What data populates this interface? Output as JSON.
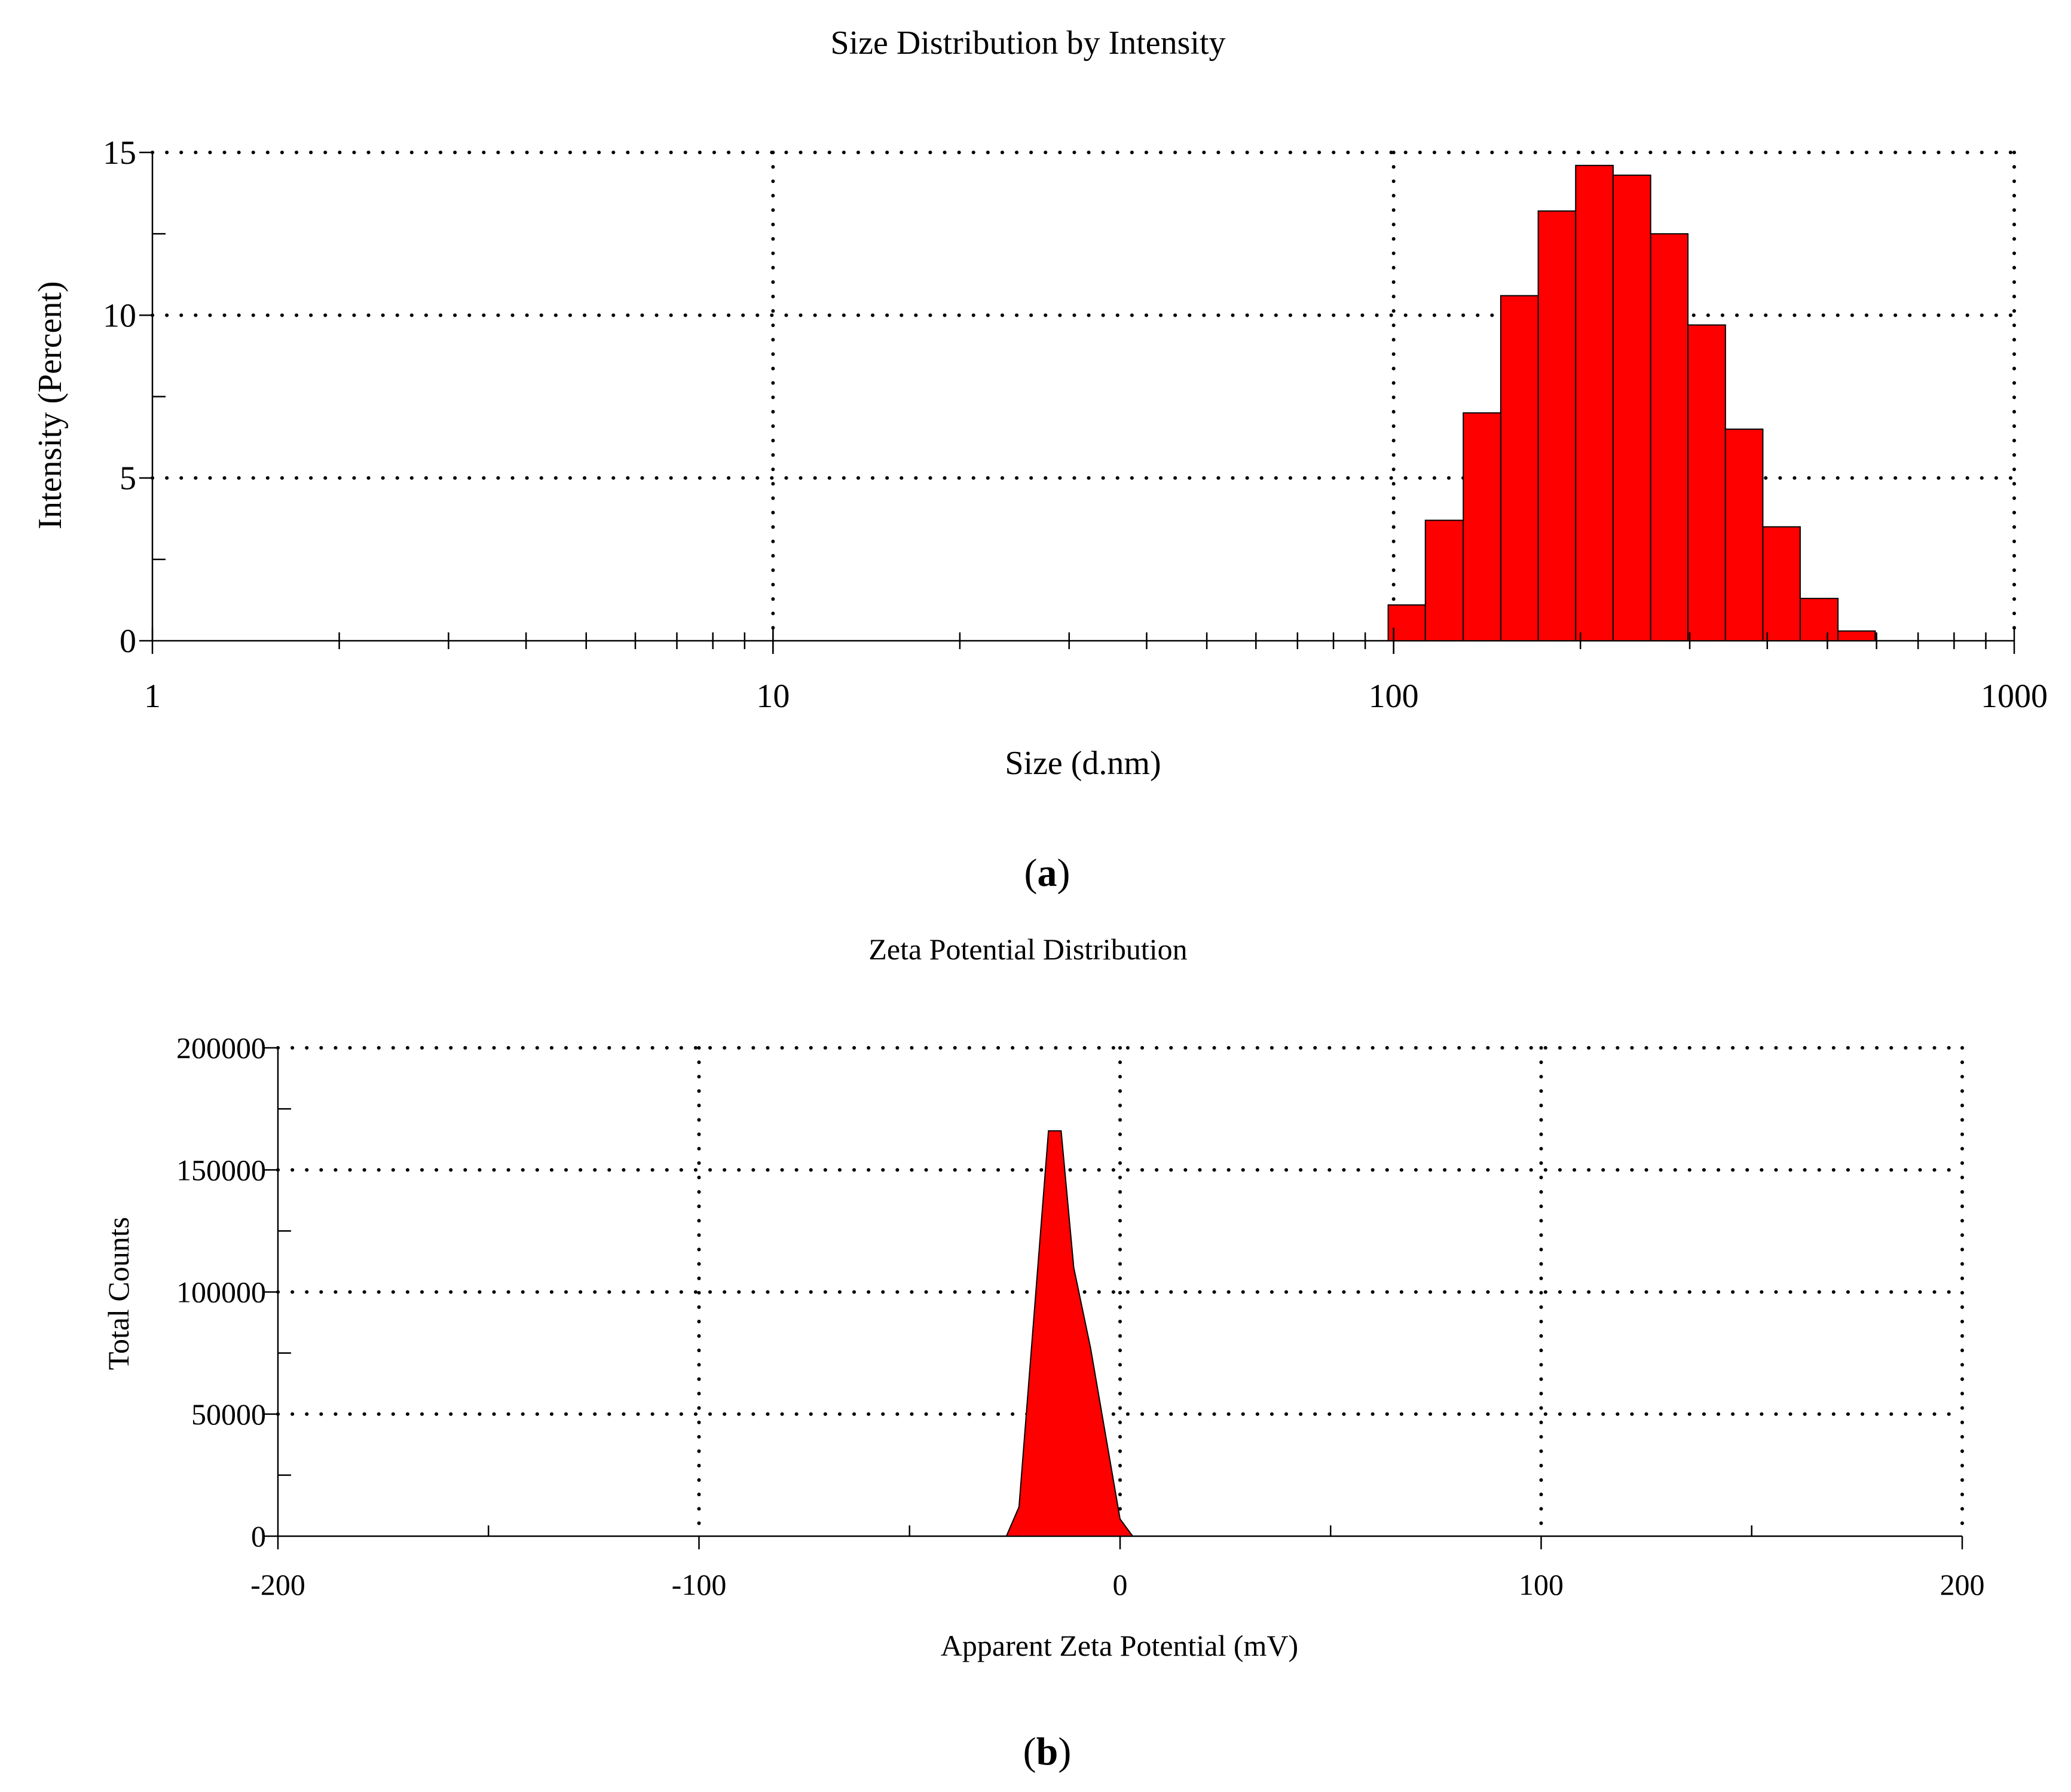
{
  "panels": {
    "a": {
      "caption_open": "(",
      "caption_letter": "a",
      "caption_close": ")"
    },
    "b": {
      "caption_open": "(",
      "caption_letter": "b",
      "caption_close": ")"
    }
  },
  "colors": {
    "fill": "#ff0000",
    "stroke": "#000000",
    "axis": "#000000",
    "grid": "#000000"
  },
  "chart_data": [
    {
      "type": "bar",
      "title": "Size Distribution by Intensity",
      "xlabel": "Size (d.nm)",
      "ylabel": "Intensity (Percent)",
      "xscale": "log",
      "xlim": [
        1,
        1000
      ],
      "ylim": [
        0,
        15
      ],
      "grid": true,
      "xticks": [
        1,
        10,
        100,
        1000
      ],
      "xtick_labels": [
        "1",
        "10",
        "100",
        "1000"
      ],
      "yticks": [
        0,
        5,
        10,
        15
      ],
      "ytick_labels": [
        "0",
        "5",
        "10",
        "15"
      ],
      "bins": [
        {
          "x0": 98.0,
          "x1": 112.5,
          "value": 1.1
        },
        {
          "x0": 112.5,
          "x1": 129.5,
          "value": 3.7
        },
        {
          "x0": 129.5,
          "x1": 148.8,
          "value": 7.0
        },
        {
          "x0": 148.8,
          "x1": 171.0,
          "value": 10.6
        },
        {
          "x0": 171.0,
          "x1": 196.5,
          "value": 13.2
        },
        {
          "x0": 196.5,
          "x1": 225.8,
          "value": 14.6
        },
        {
          "x0": 225.8,
          "x1": 259.5,
          "value": 14.3
        },
        {
          "x0": 259.5,
          "x1": 298.0,
          "value": 12.5
        },
        {
          "x0": 298.0,
          "x1": 342.5,
          "value": 9.7
        },
        {
          "x0": 342.5,
          "x1": 393.5,
          "value": 6.5
        },
        {
          "x0": 393.5,
          "x1": 452.0,
          "value": 3.5
        },
        {
          "x0": 452.0,
          "x1": 520.0,
          "value": 1.3
        },
        {
          "x0": 520.0,
          "x1": 597.0,
          "value": 0.3
        }
      ]
    },
    {
      "type": "area",
      "title": "Zeta Potential Distribution",
      "xlabel": "Apparent Zeta Potential (mV)",
      "ylabel": "Total Counts",
      "xlim": [
        -200,
        200
      ],
      "ylim": [
        0,
        200000
      ],
      "grid": true,
      "xticks": [
        -200,
        -100,
        0,
        100,
        200
      ],
      "xtick_labels": [
        "-200",
        "-100",
        "0",
        "100",
        "200"
      ],
      "yticks": [
        0,
        50000,
        100000,
        150000,
        200000
      ],
      "ytick_labels": [
        "0",
        "50000",
        "100000",
        "150000",
        "200000"
      ],
      "x": [
        -27,
        -24,
        -17,
        -14,
        -11,
        -7,
        0,
        3
      ],
      "values": [
        0,
        12000,
        166000,
        166000,
        110000,
        77000,
        7000,
        0
      ]
    }
  ]
}
